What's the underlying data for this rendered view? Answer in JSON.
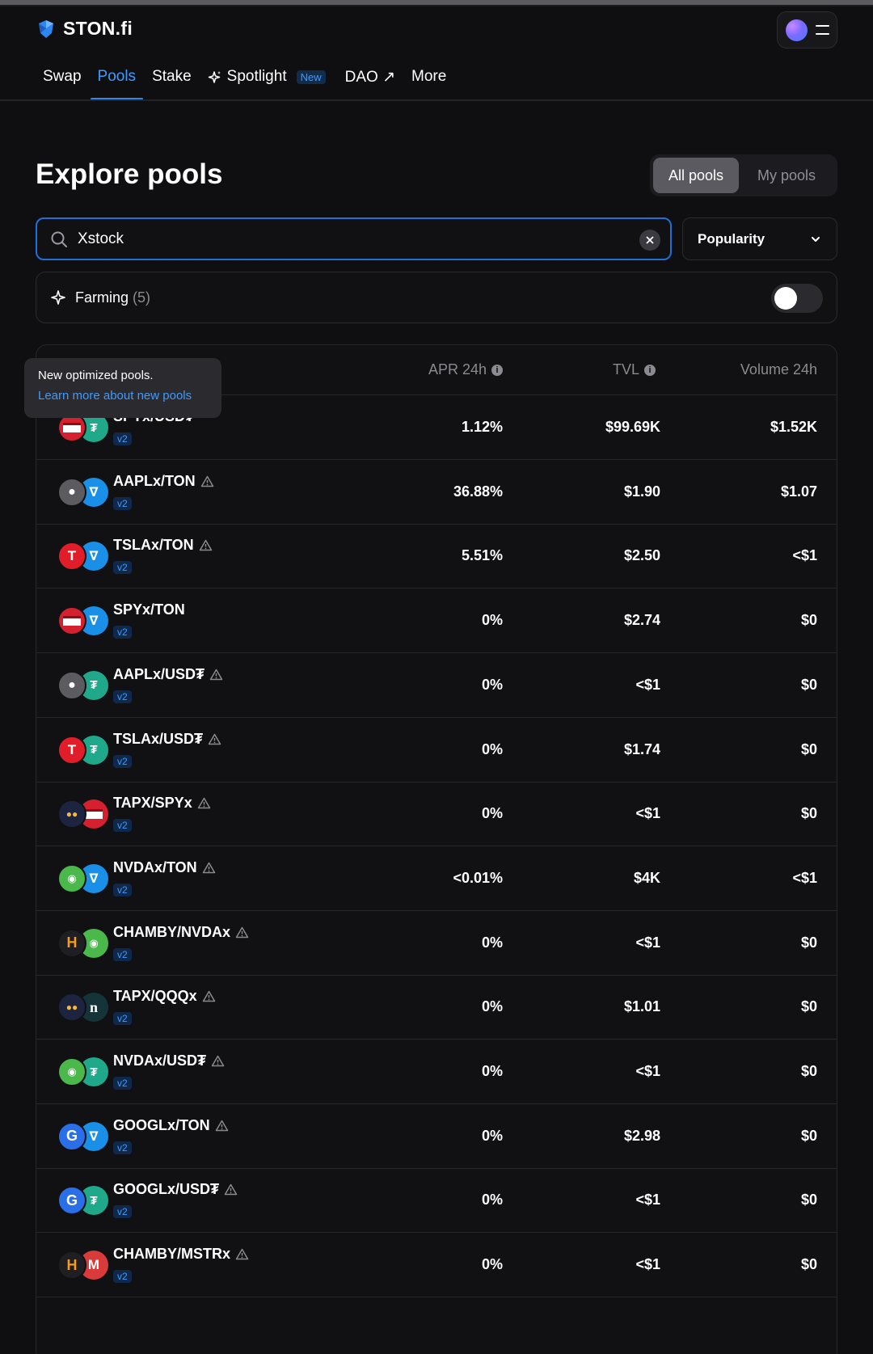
{
  "app": {
    "name": "STON.fi"
  },
  "nav": [
    {
      "label": "Swap",
      "active": false
    },
    {
      "label": "Pools",
      "active": true
    },
    {
      "label": "Stake",
      "active": false
    },
    {
      "label": "Spotlight",
      "badge": "New",
      "active": false
    },
    {
      "label": "DAO ↗",
      "active": false
    },
    {
      "label": "More",
      "active": false
    }
  ],
  "page": {
    "title": "Explore pools",
    "toggle": {
      "all": "All pools",
      "my": "My pools"
    }
  },
  "search": {
    "value": "Xstock"
  },
  "sort": {
    "label": "Popularity"
  },
  "farming": {
    "label": "Farming",
    "count": "(5)",
    "enabled": false
  },
  "tooltip": {
    "text": "New optimized pools.",
    "link": "Learn more about new pools"
  },
  "table": {
    "headers": {
      "apr": "APR 24h",
      "tvl": "TVL",
      "volume": "Volume 24h"
    },
    "rows": [
      {
        "pair": "SPYx/USD₮",
        "version": "v2",
        "apr": "1.12%",
        "tvl": "$99.69K",
        "volume": "$1.52K",
        "warning": false,
        "icon_a": "spyx-icon",
        "icon_b": "usdt-icon"
      },
      {
        "pair": "AAPLx/TON",
        "version": "v2",
        "apr": "36.88%",
        "tvl": "$1.90",
        "volume": "$1.07",
        "warning": true,
        "icon_a": "aaplx-icon",
        "icon_b": "ton-icon"
      },
      {
        "pair": "TSLAx/TON",
        "version": "v2",
        "apr": "5.51%",
        "tvl": "$2.50",
        "volume": "<$1",
        "warning": true,
        "icon_a": "tslax-icon",
        "icon_b": "ton-icon"
      },
      {
        "pair": "SPYx/TON",
        "version": "v2",
        "apr": "0%",
        "tvl": "$2.74",
        "volume": "$0",
        "warning": false,
        "icon_a": "spyx-icon",
        "icon_b": "ton-icon"
      },
      {
        "pair": "AAPLx/USD₮",
        "version": "v2",
        "apr": "0%",
        "tvl": "<$1",
        "volume": "$0",
        "warning": true,
        "icon_a": "aaplx-icon",
        "icon_b": "usdt-icon"
      },
      {
        "pair": "TSLAx/USD₮",
        "version": "v2",
        "apr": "0%",
        "tvl": "$1.74",
        "volume": "$0",
        "warning": true,
        "icon_a": "tslax-icon",
        "icon_b": "usdt-icon"
      },
      {
        "pair": "TAPX/SPYx",
        "version": "v2",
        "apr": "0%",
        "tvl": "<$1",
        "volume": "$0",
        "warning": true,
        "icon_a": "tapx-icon",
        "icon_b": "spyx-icon"
      },
      {
        "pair": "NVDAx/TON",
        "version": "v2",
        "apr": "<0.01%",
        "tvl": "$4K",
        "volume": "<$1",
        "warning": true,
        "icon_a": "nvdax-icon",
        "icon_b": "ton-icon"
      },
      {
        "pair": "CHAMBY/NVDAx",
        "version": "v2",
        "apr": "0%",
        "tvl": "<$1",
        "volume": "$0",
        "warning": true,
        "icon_a": "chamby-icon",
        "icon_b": "nvdax-icon"
      },
      {
        "pair": "TAPX/QQQx",
        "version": "v2",
        "apr": "0%",
        "tvl": "$1.01",
        "volume": "$0",
        "warning": true,
        "icon_a": "tapx-icon",
        "icon_b": "qqqx-icon"
      },
      {
        "pair": "NVDAx/USD₮",
        "version": "v2",
        "apr": "0%",
        "tvl": "<$1",
        "volume": "$0",
        "warning": true,
        "icon_a": "nvdax-icon",
        "icon_b": "usdt-icon"
      },
      {
        "pair": "GOOGLx/TON",
        "version": "v2",
        "apr": "0%",
        "tvl": "$2.98",
        "volume": "$0",
        "warning": true,
        "icon_a": "googlx-icon",
        "icon_b": "ton-icon"
      },
      {
        "pair": "GOOGLx/USD₮",
        "version": "v2",
        "apr": "0%",
        "tvl": "<$1",
        "volume": "$0",
        "warning": true,
        "icon_a": "googlx-icon",
        "icon_b": "usdt-icon"
      },
      {
        "pair": "CHAMBY/MSTRx",
        "version": "v2",
        "apr": "0%",
        "tvl": "<$1",
        "volume": "$0",
        "warning": true,
        "icon_a": "chamby-icon",
        "icon_b": "mstrx-icon"
      }
    ]
  }
}
